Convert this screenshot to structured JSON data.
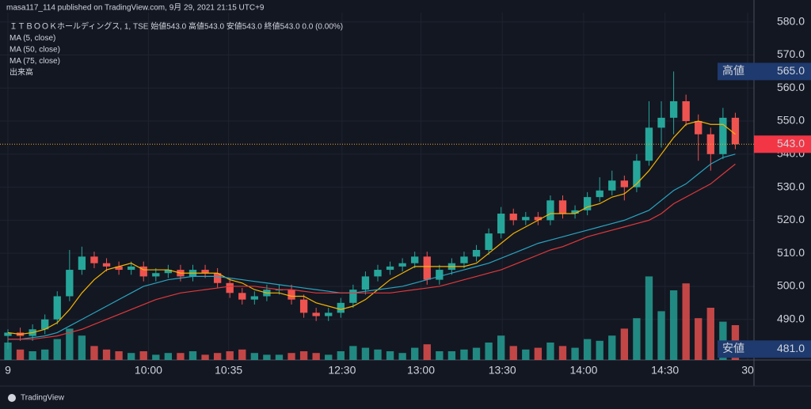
{
  "header": "masa117_114 published on TradingView.com, 9月 29, 2021 21:15 UTC+9",
  "footer": "TradingView",
  "chart_data": {
    "type": "candlestick",
    "legend": [
      "ＩＴＢＯＯＫホールディングス, 1, TSE 始値543.0 高値543.0 安値543.0 終値543.0 0.0 (0.00%)",
      "MA (5, close)",
      "MA (50, close)",
      "MA (75, close)",
      "出来高"
    ],
    "up_color": "#26a69a",
    "down_color": "#ef5350",
    "xlim": [
      0,
      60
    ],
    "xticks": [
      {
        "value": 0,
        "label": "9"
      },
      {
        "value": 11.4,
        "label": "10:00"
      },
      {
        "value": 17.9,
        "label": "10:35"
      },
      {
        "value": 27.1,
        "label": "12:30"
      },
      {
        "value": 33.5,
        "label": "13:00"
      },
      {
        "value": 40.1,
        "label": "13:30"
      },
      {
        "value": 46.7,
        "label": "14:00"
      },
      {
        "value": 53.3,
        "label": "14:30"
      },
      {
        "value": 60,
        "label": "30"
      }
    ],
    "ylim": [
      480.6,
      582.8
    ],
    "yticks": [
      {
        "value": 490,
        "label": "490.0"
      },
      {
        "value": 500,
        "label": "500.0"
      },
      {
        "value": 510,
        "label": "510.0"
      },
      {
        "value": 520,
        "label": "520.0"
      },
      {
        "value": 530,
        "label": "530.0"
      },
      {
        "value": 540,
        "label": "540.0"
      },
      {
        "value": 550,
        "label": "550.0"
      },
      {
        "value": 560,
        "label": "560.0"
      },
      {
        "value": 570,
        "label": "570.0"
      },
      {
        "value": 580,
        "label": "580.0"
      }
    ],
    "grid": true,
    "high_marker": {
      "name": "高値",
      "value": 565,
      "label": "565.0",
      "color": "#1e3a6e"
    },
    "low_marker": {
      "name": "安値",
      "value": 481,
      "label": "481.0",
      "color": "#1e3a6e"
    },
    "last_price": {
      "value": 543,
      "label": "543.0",
      "color": "#f23645"
    },
    "candles": [
      [
        485,
        487,
        481,
        486
      ],
      [
        486,
        487.5,
        483.5,
        485
      ],
      [
        485,
        488.5,
        483.5,
        487
      ],
      [
        487,
        491.5,
        485.5,
        490
      ],
      [
        490,
        498.5,
        488.5,
        497
      ],
      [
        497,
        511,
        495.5,
        505
      ],
      [
        505,
        512,
        503.5,
        509
      ],
      [
        509,
        510.5,
        505.5,
        507
      ],
      [
        507,
        508.5,
        504.5,
        506
      ],
      [
        506,
        507.5,
        503.5,
        505
      ],
      [
        505,
        507.5,
        503.5,
        506
      ],
      [
        506,
        507.5,
        501.5,
        503
      ],
      [
        503,
        505.5,
        501.5,
        504
      ],
      [
        504,
        506.5,
        502.5,
        505
      ],
      [
        505,
        506.5,
        501.5,
        503
      ],
      [
        503,
        506.5,
        501.5,
        505
      ],
      [
        505,
        506.5,
        502.5,
        504
      ],
      [
        504,
        505.5,
        499.5,
        501
      ],
      [
        501,
        502.5,
        496.5,
        498
      ],
      [
        498,
        499.5,
        494.5,
        496
      ],
      [
        496,
        498.5,
        494.5,
        497
      ],
      [
        497,
        500.5,
        495.5,
        499
      ],
      [
        499,
        500.5,
        497.5,
        499
      ],
      [
        499,
        500.5,
        494.5,
        496
      ],
      [
        496,
        497.5,
        490.5,
        492
      ],
      [
        492,
        493.5,
        489.5,
        491
      ],
      [
        491,
        493.5,
        489.5,
        492
      ],
      [
        492,
        496.5,
        490.5,
        495
      ],
      [
        495,
        500.5,
        493.5,
        499
      ],
      [
        499,
        504.5,
        497.5,
        503
      ],
      [
        503,
        506.5,
        501.5,
        505
      ],
      [
        505,
        507.5,
        503.5,
        506
      ],
      [
        506,
        508.5,
        504.5,
        507
      ],
      [
        507,
        510.5,
        505.5,
        509
      ],
      [
        509,
        510.5,
        500.5,
        502
      ],
      [
        502,
        506.5,
        500.5,
        505
      ],
      [
        505,
        508.5,
        503.5,
        507
      ],
      [
        507,
        510.5,
        505.5,
        509
      ],
      [
        509,
        512.5,
        507.5,
        511
      ],
      [
        511,
        517.5,
        509.5,
        516
      ],
      [
        516,
        524,
        514.5,
        522
      ],
      [
        522,
        523.5,
        518.5,
        520
      ],
      [
        520,
        522.5,
        518.5,
        521
      ],
      [
        521,
        522.5,
        518.5,
        520
      ],
      [
        520,
        527.5,
        518.5,
        526
      ],
      [
        526,
        527.5,
        520.5,
        522
      ],
      [
        522,
        524.5,
        520.5,
        523
      ],
      [
        523,
        528.5,
        521.5,
        527
      ],
      [
        527,
        533,
        525.5,
        529
      ],
      [
        529,
        535,
        527.5,
        532
      ],
      [
        532,
        533.5,
        526,
        530
      ],
      [
        530,
        540,
        528.5,
        538
      ],
      [
        538,
        556,
        536.5,
        548
      ],
      [
        548,
        556,
        542,
        551
      ],
      [
        551,
        565,
        546,
        556
      ],
      [
        556,
        558,
        548.5,
        550
      ],
      [
        550,
        552,
        538,
        546
      ],
      [
        546,
        548,
        535,
        540
      ],
      [
        540,
        554,
        538.5,
        551
      ],
      [
        551,
        552.5,
        541.5,
        543
      ]
    ],
    "vlim": [
      0,
      25000
    ],
    "volumes": [
      5000,
      3000,
      2500,
      3000,
      6000,
      9000,
      7000,
      4000,
      3000,
      2500,
      2000,
      2500,
      1500,
      2000,
      2000,
      2500,
      1500,
      2000,
      2500,
      3000,
      2000,
      1500,
      1500,
      2000,
      2500,
      2000,
      1500,
      2500,
      4000,
      3500,
      3000,
      2500,
      2000,
      3500,
      4500,
      2500,
      2500,
      3000,
      3500,
      5000,
      7000,
      4000,
      3000,
      3500,
      5000,
      4000,
      3500,
      6000,
      5500,
      7000,
      9000,
      12000,
      24000,
      14000,
      20000,
      22000,
      12000,
      15000,
      11000,
      10000
    ],
    "series": [
      {
        "color": "#f5b400",
        "values": [
          486,
          485.5,
          486,
          487,
          489,
          493,
          498,
          502,
          505,
          506,
          507,
          505,
          505,
          505,
          504,
          504,
          504,
          504,
          502,
          501,
          499,
          498,
          498,
          497,
          497,
          495,
          494,
          493,
          494,
          496,
          499,
          502,
          504,
          506,
          506,
          506,
          506,
          506,
          507,
          510,
          513,
          516,
          518,
          520,
          522,
          522,
          522,
          524,
          525,
          527,
          528,
          531,
          535,
          540,
          545,
          549,
          550,
          549,
          549,
          546
        ]
      },
      {
        "color": "#2aa4c0",
        "values": [
          484,
          484,
          484.5,
          485,
          486,
          488,
          490,
          492,
          494,
          496,
          498,
          500,
          501,
          502,
          502.5,
          503,
          503,
          503,
          502.5,
          502,
          501.5,
          501,
          500.5,
          500,
          499.5,
          499,
          498.5,
          498,
          498,
          498.5,
          499,
          499.5,
          500,
          501,
          502,
          503,
          504,
          505,
          506,
          507,
          508.5,
          510,
          511.5,
          513,
          514,
          515,
          516,
          517,
          518,
          519,
          520,
          521.5,
          523,
          526,
          529,
          531,
          534,
          537,
          539,
          540
        ]
      },
      {
        "color": "#e0393b",
        "values": [
          484,
          484,
          484,
          484.5,
          485,
          486,
          487,
          488.5,
          490,
          491.5,
          493,
          494.5,
          496,
          497,
          498,
          498.5,
          499,
          499.5,
          500,
          500,
          500,
          499.5,
          499,
          499,
          498.5,
          498,
          498,
          498,
          498,
          498,
          498,
          498,
          498.5,
          499,
          499.5,
          500,
          501,
          502,
          503,
          504,
          505,
          506.5,
          508,
          509.5,
          511,
          512,
          513.5,
          515,
          516,
          517,
          518,
          519,
          520,
          522,
          525,
          527,
          529,
          531,
          534,
          537
        ]
      }
    ]
  }
}
